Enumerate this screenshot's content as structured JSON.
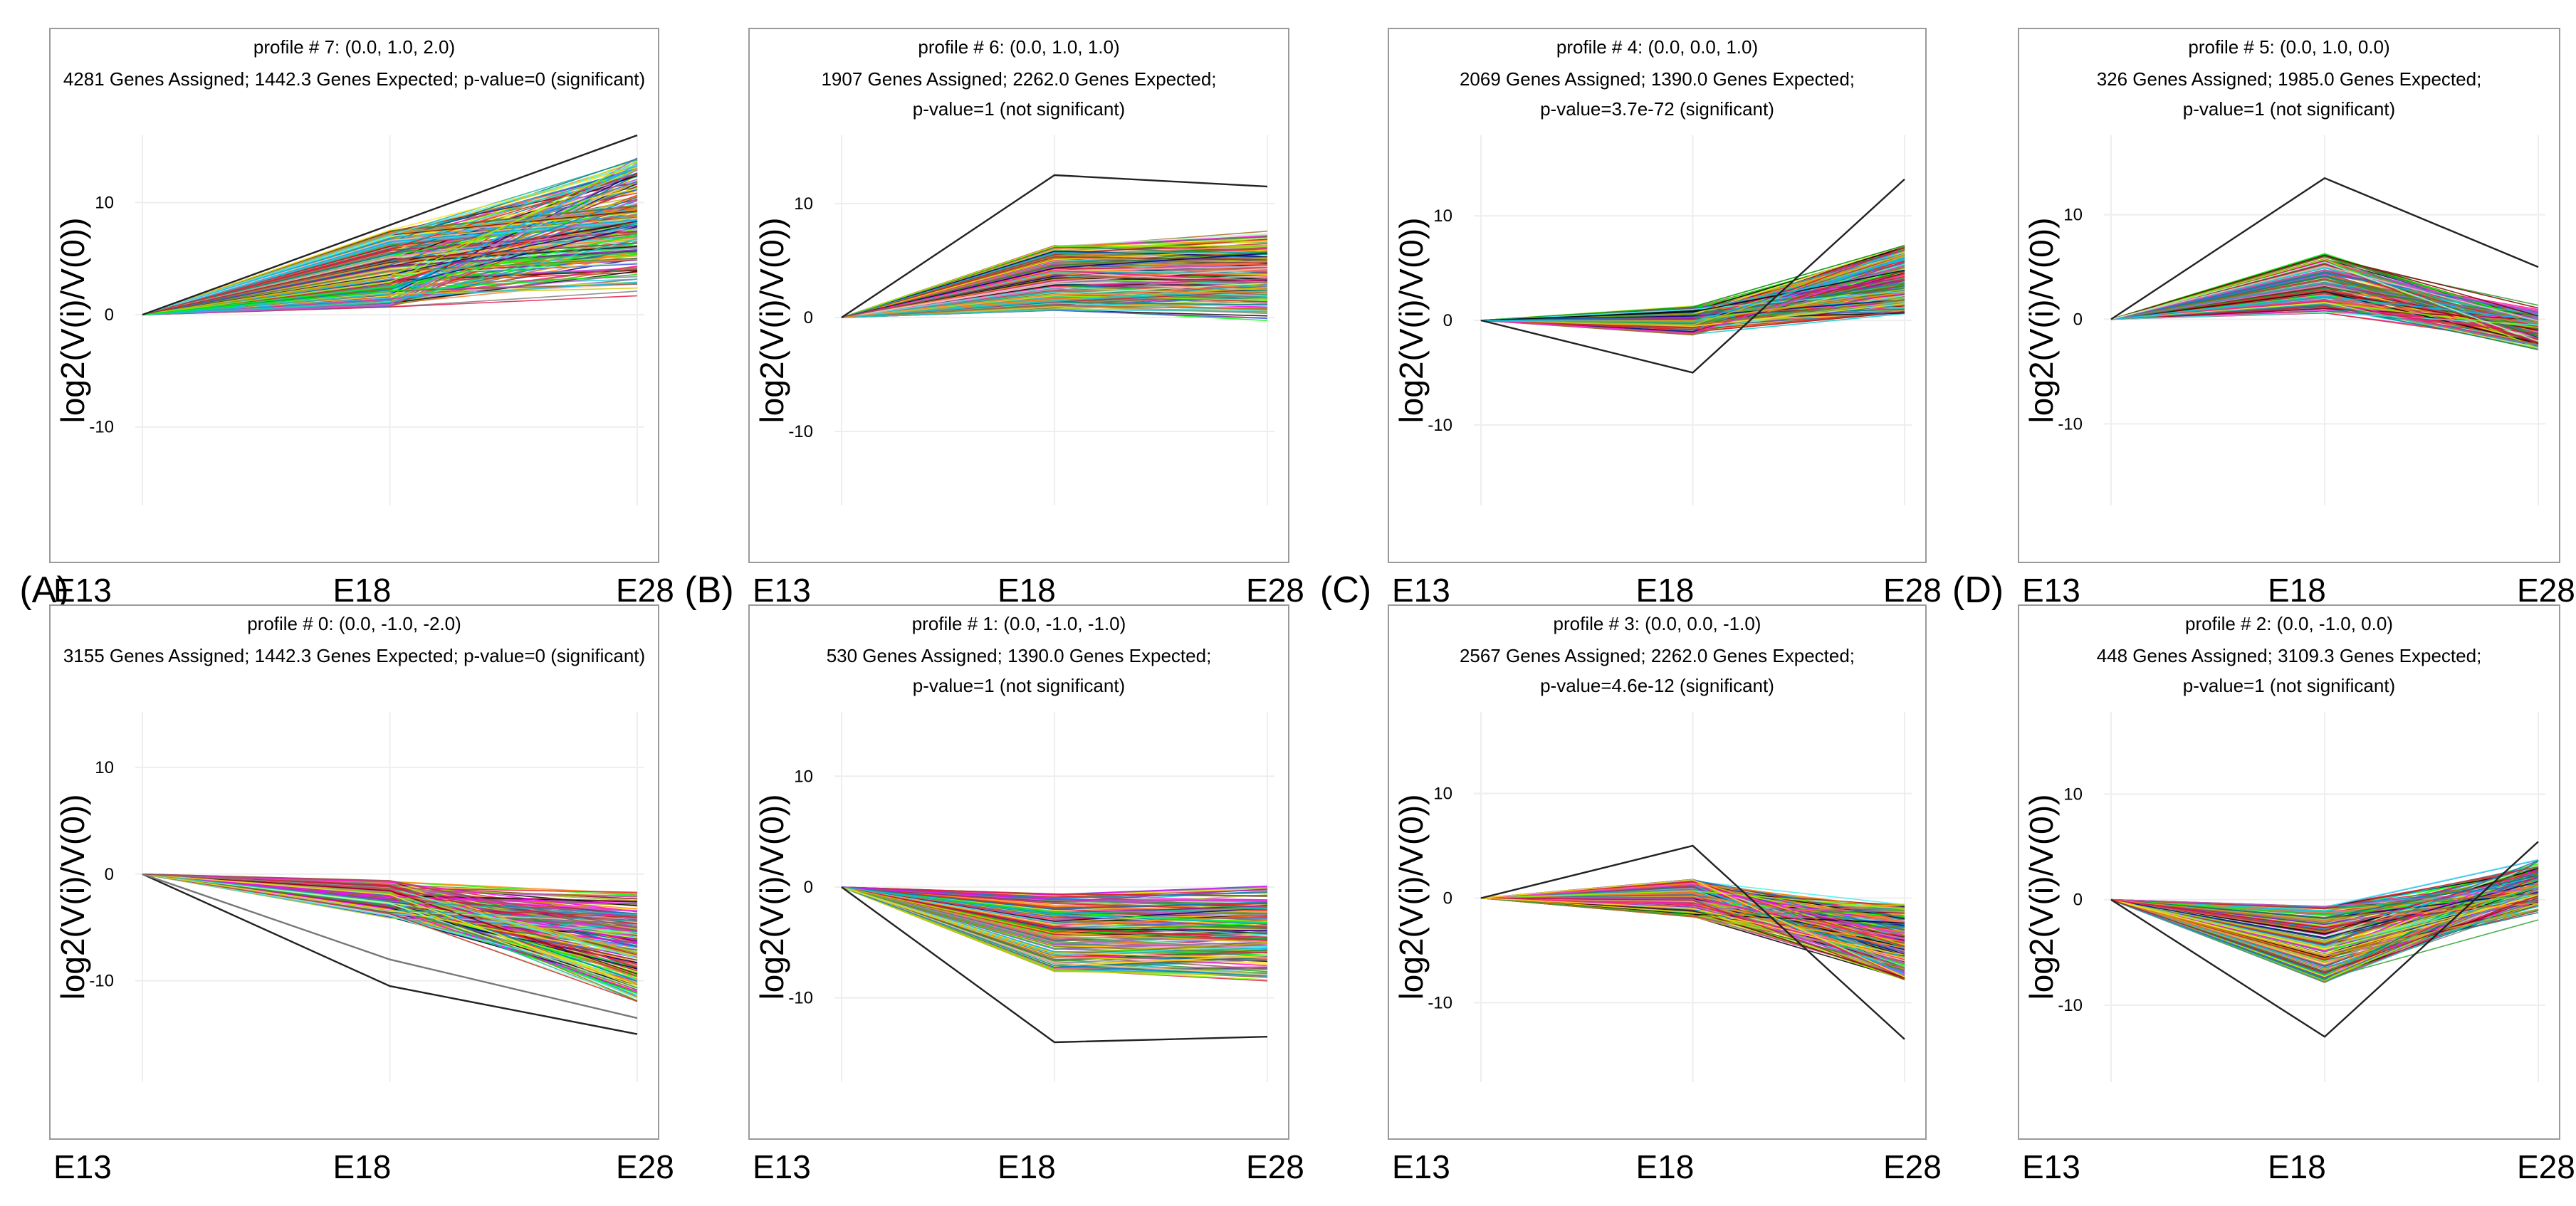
{
  "chart_data": [
    {
      "panel_label": "(A)",
      "type": "line",
      "title": "profile # 7: (0.0, 1.0, 2.0)",
      "stats": [
        "4281 Genes Assigned; 1442.3 Genes Expected; p-value=0 (significant)"
      ],
      "categories": [
        "E13",
        "E18",
        "E28"
      ],
      "ylabel": "log2(V(i)/V(0))",
      "yticks": [
        10,
        0,
        -10
      ],
      "ylim": [
        -17,
        16
      ],
      "profile": [
        0,
        1,
        2
      ],
      "spread": [
        0.55,
        3.2,
        6.0
      ],
      "series_count": 260,
      "highlight": [
        [
          0,
          8,
          16
        ]
      ]
    },
    {
      "panel_label": "(B)",
      "type": "line",
      "title": "profile # 6: (0.0, 1.0, 1.0)",
      "stats": [
        "1907 Genes Assigned; 2262.0 Genes Expected;",
        "p-value=1 (not significant)"
      ],
      "categories": [
        "E13",
        "E18",
        "E28"
      ],
      "ylabel": "log2(V(i)/V(0))",
      "yticks": [
        10,
        0,
        -10
      ],
      "ylim": [
        -16.5,
        16
      ],
      "profile": [
        0,
        1,
        1
      ],
      "spread": [
        0.5,
        2.6,
        2.7
      ],
      "series_count": 240,
      "highlight": [
        [
          0,
          12.5,
          11.5
        ]
      ]
    },
    {
      "panel_label": "(C)",
      "type": "line",
      "title": "profile # 4: (0.0, 0.0, 1.0)",
      "stats": [
        "2069 Genes Assigned; 1390.0 Genes Expected;",
        "p-value=3.7e-72 (significant)"
      ],
      "categories": [
        "E13",
        "E18",
        "E28"
      ],
      "ylabel": "log2(V(i)/V(0))",
      "yticks": [
        10,
        0,
        -10
      ],
      "ylim": [
        -17.7,
        17.7
      ],
      "profile": [
        0,
        0,
        1
      ],
      "spread": [
        0.4,
        1.4,
        3.0
      ],
      "series_count": 240,
      "highlight": [
        [
          0,
          -5,
          13.5
        ]
      ]
    },
    {
      "panel_label": "(D)",
      "type": "line",
      "title": "profile # 5: (0.0, 1.0, 0.0)",
      "stats": [
        "326 Genes Assigned; 1985.0 Genes Expected;",
        "p-value=1 (not significant)"
      ],
      "categories": [
        "E13",
        "E18",
        "E28"
      ],
      "ylabel": "log2(V(i)/V(0))",
      "yticks": [
        10,
        0,
        -10
      ],
      "ylim": [
        -17.8,
        17.6
      ],
      "profile": [
        0,
        1,
        0
      ],
      "spread": [
        0.4,
        2.6,
        2.2
      ],
      "series_count": 180,
      "highlight": [
        [
          0,
          13.5,
          5
        ]
      ]
    },
    {
      "panel_label": "",
      "type": "line",
      "title": "profile # 0: (0.0, -1.0, -2.0)",
      "stats": [
        "3155 Genes Assigned; 1442.3 Genes Expected; p-value=0 (significant)"
      ],
      "categories": [
        "E13",
        "E18",
        "E28"
      ],
      "ylabel": "log2(V(i)/V(0))",
      "yticks": [
        10,
        0,
        -10
      ],
      "ylim": [
        -19.5,
        15.2
      ],
      "profile": [
        0,
        -1,
        -2
      ],
      "spread": [
        0.4,
        1.6,
        3.5
      ],
      "series_count": 230,
      "highlight": [
        [
          0,
          -10.5,
          -15
        ],
        [
          0,
          -8,
          -13.5
        ]
      ]
    },
    {
      "panel_label": "",
      "type": "line",
      "title": "profile # 1: (0.0, -1.0, -1.0)",
      "stats": [
        "530 Genes Assigned; 1390.0 Genes Expected;",
        "p-value=1 (not significant)"
      ],
      "categories": [
        "E13",
        "E18",
        "E28"
      ],
      "ylabel": "log2(V(i)/V(0))",
      "yticks": [
        10,
        0,
        -10
      ],
      "ylim": [
        -17.6,
        15.8
      ],
      "profile": [
        0,
        -1,
        -1
      ],
      "spread": [
        0.5,
        3.2,
        3.3
      ],
      "series_count": 200,
      "highlight": [
        [
          0,
          -14,
          -13.5
        ]
      ]
    },
    {
      "panel_label": "",
      "type": "line",
      "title": "profile # 3: (0.0, 0.0, -1.0)",
      "stats": [
        "2567 Genes Assigned; 2262.0 Genes Expected;",
        "p-value=4.6e-12 (significant)"
      ],
      "categories": [
        "E13",
        "E18",
        "E28"
      ],
      "ylabel": "log2(V(i)/V(0))",
      "yticks": [
        10,
        0,
        -10
      ],
      "ylim": [
        -17.6,
        17.8
      ],
      "profile": [
        0,
        0,
        -1
      ],
      "spread": [
        0.4,
        1.8,
        3.3
      ],
      "series_count": 240,
      "highlight": [
        [
          0,
          5,
          -13.5
        ]
      ]
    },
    {
      "panel_label": "",
      "type": "line",
      "title": "profile # 2: (0.0, -1.0, 0.0)",
      "stats": [
        "448 Genes Assigned; 3109.3 Genes Expected;",
        "p-value=1 (not significant)"
      ],
      "categories": [
        "E13",
        "E18",
        "E28"
      ],
      "ylabel": "log2(V(i)/V(0))",
      "yticks": [
        10,
        0,
        -10
      ],
      "ylim": [
        -17.3,
        17.8
      ],
      "profile": [
        0,
        -1,
        0
      ],
      "spread": [
        0.5,
        3.3,
        2.8
      ],
      "series_count": 200,
      "highlight": [
        [
          0,
          -13,
          5.5
        ]
      ]
    }
  ]
}
